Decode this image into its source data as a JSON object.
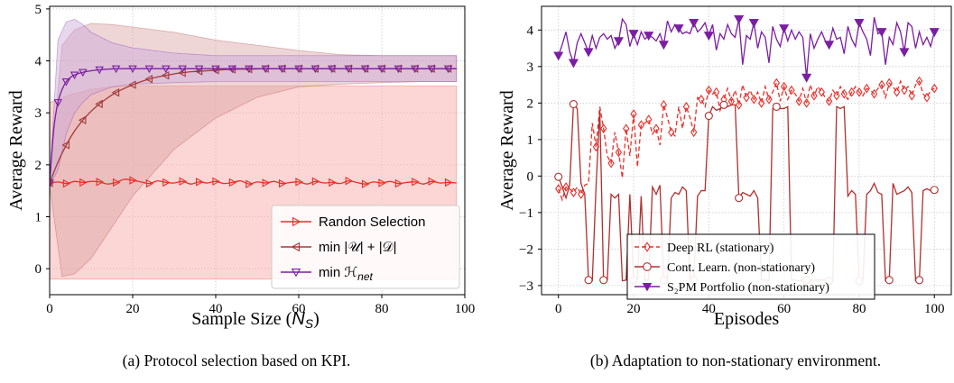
{
  "chart_data": [
    {
      "type": "line",
      "xlabel_prefix": "Sample Size (",
      "xlabel_var": "N",
      "xlabel_sub": "S",
      "xlabel_suffix": ")",
      "ylabel": "Average Reward",
      "caption": "(a) Protocol selection based on KPI.",
      "xlim": [
        0,
        100
      ],
      "ylim": [
        -0.5,
        5.05
      ],
      "xticks": [
        0,
        20,
        40,
        60,
        80,
        100
      ],
      "yticks": [
        0,
        1,
        2,
        3,
        4,
        5
      ],
      "grid": true,
      "legend_position": "lower-right",
      "series": [
        {
          "name": "Randon Selection",
          "color": "#e8302a",
          "marker": "triangle-right",
          "fill": "#f9b4b0",
          "x": [
            0,
            2,
            4,
            6,
            8,
            10,
            12,
            14,
            16,
            18,
            20,
            22,
            24,
            26,
            28,
            30,
            32,
            34,
            36,
            38,
            40,
            42,
            44,
            46,
            48,
            50,
            52,
            54,
            56,
            58,
            60,
            62,
            64,
            66,
            68,
            70,
            72,
            74,
            76,
            78,
            80,
            82,
            84,
            86,
            88,
            90,
            92,
            94,
            96,
            98
          ],
          "y": [
            1.65,
            1.67,
            1.64,
            1.68,
            1.66,
            1.68,
            1.67,
            1.63,
            1.66,
            1.72,
            1.7,
            1.67,
            1.64,
            1.69,
            1.66,
            1.65,
            1.68,
            1.63,
            1.67,
            1.65,
            1.68,
            1.64,
            1.66,
            1.69,
            1.63,
            1.67,
            1.65,
            1.68,
            1.64,
            1.66,
            1.67,
            1.63,
            1.68,
            1.65,
            1.66,
            1.64,
            1.69,
            1.66,
            1.63,
            1.67,
            1.65,
            1.68,
            1.64,
            1.66,
            1.67,
            1.63,
            1.68,
            1.65,
            1.66,
            1.65
          ],
          "band_x": [
            0,
            5,
            10,
            15,
            20,
            30,
            40,
            50,
            60,
            70,
            80,
            90,
            98
          ],
          "band_low": [
            -0.2,
            -0.2,
            -0.2,
            -0.2,
            -0.2,
            -0.2,
            -0.2,
            -0.2,
            -0.2,
            -0.2,
            -0.2,
            -0.2,
            -0.2
          ],
          "band_high": [
            3.2,
            3.35,
            3.45,
            3.5,
            3.52,
            3.52,
            3.52,
            3.52,
            3.52,
            3.52,
            3.52,
            3.52,
            3.52
          ]
        },
        {
          "name": "min |𝒰| + |𝒟|",
          "color": "#a33a3a",
          "marker": "triangle-left",
          "fill": "#d9a3a3",
          "x": [
            0,
            2,
            4,
            6,
            8,
            10,
            12,
            14,
            16,
            18,
            20,
            22,
            24,
            26,
            28,
            30,
            32,
            34,
            36,
            38,
            40,
            42,
            44,
            46,
            48,
            50,
            52,
            54,
            56,
            58,
            60,
            62,
            64,
            66,
            68,
            70,
            72,
            74,
            76,
            78,
            80,
            82,
            84,
            86,
            88,
            90,
            92,
            94,
            96,
            98
          ],
          "y": [
            1.65,
            2.05,
            2.38,
            2.65,
            2.86,
            3.03,
            3.17,
            3.29,
            3.39,
            3.47,
            3.54,
            3.6,
            3.65,
            3.69,
            3.72,
            3.75,
            3.77,
            3.79,
            3.8,
            3.81,
            3.82,
            3.83,
            3.835,
            3.84,
            3.84,
            3.845,
            3.85,
            3.85,
            3.85,
            3.85,
            3.85,
            3.85,
            3.85,
            3.85,
            3.85,
            3.85,
            3.85,
            3.85,
            3.85,
            3.85,
            3.85,
            3.85,
            3.85,
            3.85,
            3.85,
            3.85,
            3.85,
            3.85,
            3.85,
            3.85
          ],
          "band_x": [
            0,
            3,
            6,
            10,
            15,
            20,
            30,
            40,
            50,
            60,
            70,
            80,
            90,
            98
          ],
          "band_low": [
            1.6,
            -0.15,
            -0.1,
            0.2,
            0.8,
            1.4,
            2.3,
            2.9,
            3.3,
            3.5,
            3.55,
            3.58,
            3.6,
            3.6
          ],
          "band_high": [
            1.7,
            4.3,
            4.6,
            4.72,
            4.7,
            4.65,
            4.55,
            4.4,
            4.3,
            4.2,
            4.12,
            4.1,
            4.1,
            4.1
          ]
        },
        {
          "name": "min ℋ_net",
          "color": "#7b1fa2",
          "marker": "triangle-down",
          "fill": "#c9a6dc",
          "x": [
            0,
            1,
            2,
            3,
            4,
            5,
            6,
            8,
            10,
            12,
            14,
            16,
            18,
            20,
            22,
            24,
            26,
            28,
            30,
            32,
            34,
            36,
            38,
            40,
            42,
            44,
            46,
            48,
            50,
            52,
            54,
            56,
            58,
            60,
            62,
            64,
            66,
            68,
            70,
            72,
            74,
            76,
            78,
            80,
            82,
            84,
            86,
            88,
            90,
            92,
            94,
            96,
            98
          ],
          "y": [
            1.65,
            2.7,
            3.2,
            3.45,
            3.6,
            3.68,
            3.73,
            3.78,
            3.81,
            3.83,
            3.84,
            3.85,
            3.85,
            3.85,
            3.85,
            3.85,
            3.85,
            3.85,
            3.85,
            3.85,
            3.85,
            3.85,
            3.85,
            3.85,
            3.85,
            3.85,
            3.85,
            3.85,
            3.85,
            3.85,
            3.85,
            3.85,
            3.85,
            3.85,
            3.85,
            3.85,
            3.85,
            3.85,
            3.85,
            3.85,
            3.85,
            3.85,
            3.85,
            3.85,
            3.85,
            3.85,
            3.85,
            3.85,
            3.85,
            3.85,
            3.85,
            3.85,
            3.85
          ],
          "band_x": [
            0,
            2,
            4,
            6,
            8,
            10,
            15,
            20,
            30,
            40,
            50,
            60,
            80,
            98
          ],
          "band_low": [
            1.6,
            1.9,
            2.6,
            3.0,
            3.2,
            3.35,
            3.5,
            3.55,
            3.58,
            3.6,
            3.6,
            3.6,
            3.6,
            3.6
          ],
          "band_high": [
            1.7,
            4.4,
            4.75,
            4.8,
            4.7,
            4.55,
            4.35,
            4.25,
            4.15,
            4.1,
            4.1,
            4.1,
            4.1,
            4.1
          ]
        }
      ]
    },
    {
      "type": "line",
      "xlabel": "Episodes",
      "ylabel": "Average Reward",
      "caption": "(b) Adaptation to non-stationary environment.",
      "xlim": [
        -4.5,
        104.5
      ],
      "ylim": [
        -3.25,
        4.65
      ],
      "xticks": [
        0,
        20,
        40,
        60,
        80,
        100
      ],
      "yticks": [
        -3,
        -2,
        -1,
        0,
        1,
        2,
        3,
        4
      ],
      "ytick_labels": [
        "−3",
        "−2",
        "−1",
        "0",
        "1",
        "2",
        "3",
        "4"
      ],
      "grid": true,
      "legend_position": "lower-center",
      "series": [
        {
          "name": "Deep RL (stationary)",
          "color": "#e8302a",
          "dashed": true,
          "marker": "diamond",
          "y": [
            -0.35,
            -0.65,
            -0.3,
            -0.35,
            -0.45,
            -0.3,
            -0.5,
            -0.25,
            -0.2,
            1.45,
            0.8,
            1.9,
            1.3,
            0.55,
            0.35,
            1.2,
            0.65,
            -0.05,
            1.3,
            0.55,
            1.7,
            0.25,
            1.4,
            1.45,
            1.55,
            1.15,
            1.3,
            0.85,
            1.95,
            1.6,
            1.2,
            1.1,
            1.9,
            1.3,
            1.9,
            1.6,
            1.2,
            2.15,
            2.1,
            1.9,
            2.35,
            2.25,
            2.3,
            1.8,
            2.1,
            2.4,
            2.05,
            2.35,
            1.95,
            2.5,
            2.15,
            2.35,
            2.1,
            2.3,
            2.0,
            2.45,
            2.1,
            2.3,
            2.55,
            2.05,
            2.45,
            2.1,
            2.35,
            2.25,
            2.05,
            2.4,
            2.0,
            2.5,
            2.2,
            2.45,
            2.3,
            2.15,
            2.05,
            2.35,
            2.2,
            2.45,
            2.25,
            2.1,
            2.3,
            2.45,
            2.3,
            2.2,
            2.4,
            2.35,
            2.25,
            2.4,
            2.5,
            2.15,
            2.55,
            2.45,
            2.3,
            2.6,
            2.35,
            2.45,
            2.2,
            2.5,
            2.6,
            2.25,
            2.15,
            2.35,
            2.4
          ]
        },
        {
          "name": "Cont. Learn. (non-stationary)",
          "color": "#b0302e",
          "marker": "circle-open",
          "y": [
            -0.02,
            -0.3,
            -0.6,
            -0.25,
            1.97,
            1.85,
            -0.2,
            -0.5,
            -2.85,
            -2.87,
            -0.3,
            1.8,
            -2.85,
            -2.85,
            -0.5,
            -0.6,
            -0.5,
            -2.87,
            -2.85,
            -0.5,
            -2.85,
            -2.85,
            -0.55,
            -2.85,
            -2.85,
            -0.3,
            -0.5,
            -0.25,
            -2.85,
            -2.85,
            -0.6,
            -0.45,
            -0.5,
            -0.3,
            -0.4,
            -2.87,
            -2.85,
            -0.55,
            -0.4,
            -0.4,
            1.65,
            1.9,
            1.8,
            1.85,
            1.95,
            1.9,
            1.95,
            1.95,
            -0.6,
            -0.45,
            -0.5,
            -0.55,
            -0.4,
            -0.6,
            -2.85,
            -2.85,
            -2.87,
            1.85,
            1.9,
            1.85,
            1.85,
            1.9,
            -2.85,
            -2.85,
            -2.87,
            -2.85,
            -2.85,
            -2.85,
            -2.85,
            -2.85,
            -2.85,
            -2.85,
            -2.87,
            -2.85,
            1.9,
            1.85,
            1.9,
            -0.55,
            -0.4,
            -0.5,
            -2.87,
            -2.85,
            -0.5,
            -0.4,
            -0.2,
            -0.45,
            -0.5,
            -2.87,
            -2.85,
            -0.2,
            -0.5,
            -0.45,
            -0.4,
            -0.3,
            -0.45,
            -2.87,
            -2.85,
            -0.4,
            -0.35,
            -0.4,
            -0.38
          ]
        },
        {
          "name": "S₂PM Portfolio (non-stationary)",
          "color": "#7b1fa2",
          "marker": "triangle-down-filled",
          "y": [
            3.3,
            3.6,
            3.95,
            3.4,
            3.1,
            3.65,
            3.9,
            3.65,
            3.4,
            3.85,
            3.5,
            3.8,
            3.9,
            3.75,
            3.85,
            3.5,
            3.7,
            4.3,
            4.15,
            3.55,
            3.9,
            3.6,
            3.95,
            3.75,
            3.85,
            3.8,
            3.7,
            3.9,
            3.6,
            4.25,
            3.95,
            4.15,
            4.05,
            3.9,
            3.95,
            3.9,
            4.2,
            3.95,
            4.05,
            4.2,
            3.85,
            4.15,
            3.45,
            3.9,
            3.75,
            4.15,
            3.9,
            3.8,
            4.3,
            3.05,
            3.85,
            3.75,
            4.2,
            3.5,
            3.95,
            3.8,
            3.1,
            4.1,
            3.75,
            3.55,
            4.05,
            3.7,
            4.0,
            3.75,
            3.95,
            3.8,
            2.7,
            3.9,
            3.5,
            3.75,
            3.95,
            3.7,
            3.6,
            4.05,
            3.75,
            3.8,
            3.35,
            4.1,
            3.75,
            3.55,
            4.2,
            3.95,
            3.75,
            3.3,
            4.35,
            3.9,
            3.95,
            3.05,
            3.8,
            3.6,
            4.2,
            3.95,
            3.4,
            4.2,
            4.1,
            3.5,
            3.95,
            3.6,
            3.8,
            3.55,
            3.95
          ]
        }
      ]
    }
  ]
}
